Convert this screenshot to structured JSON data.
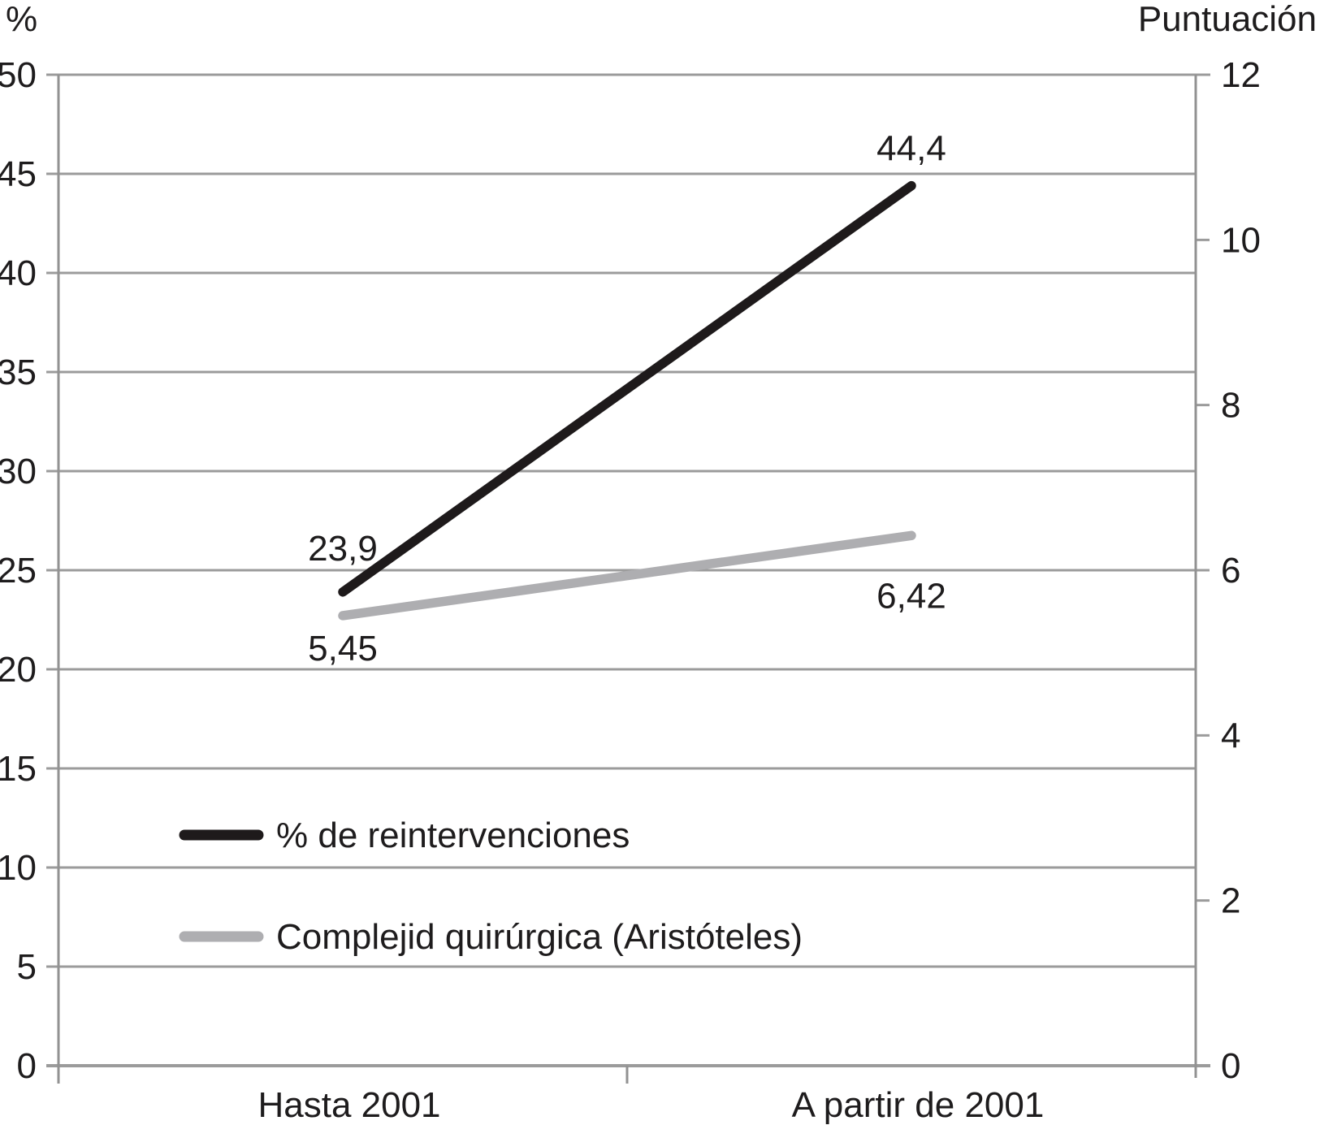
{
  "chart_data": {
    "type": "line",
    "title": "",
    "categories": [
      "Hasta 2001",
      "A partir de 2001"
    ],
    "series": [
      {
        "name": "% de reintervenciones",
        "axis": "left",
        "values": [
          23.9,
          44.4
        ],
        "point_labels": [
          "23,9",
          "44,4"
        ],
        "color": "#1e1a1b"
      },
      {
        "name": "Complejid quirúrgica (Aristóteles)",
        "axis": "right",
        "values": [
          5.45,
          6.42
        ],
        "point_labels": [
          "5,45",
          "6,42"
        ],
        "color": "#aeaeb1"
      }
    ],
    "left_axis": {
      "title": "%",
      "min": 0,
      "max": 50,
      "tick_step": 5,
      "ticks": [
        0,
        5,
        10,
        15,
        20,
        25,
        30,
        35,
        40,
        45,
        50
      ]
    },
    "right_axis": {
      "title": "Puntuación",
      "min": 0,
      "max": 12,
      "tick_step": 2,
      "ticks": [
        0,
        2,
        4,
        6,
        8,
        10,
        12
      ]
    },
    "grid": "horizontal gridlines at every left-axis tick",
    "legend_position": "inside-bottom-left",
    "colors": {
      "text": "#1e1c1d",
      "grid": "#9b9b9b",
      "axis": "#929292",
      "background": "#ffffff"
    }
  }
}
